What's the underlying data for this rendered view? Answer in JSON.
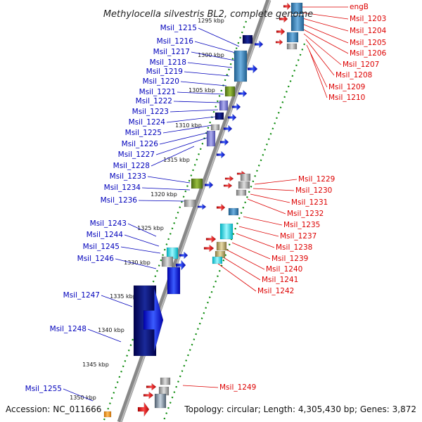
{
  "title": "Methylocella silvestris BL2, complete genome",
  "footer": {
    "accession": "Accession: NC_011666",
    "summary": "Topology: circular; Length: 4,305,430 bp; Genes: 3,872"
  },
  "colors": {
    "reverse_label": "#dd0000",
    "forward_label": "#0000bb",
    "backbone": "#888888",
    "tick_dots": "#0a8a0a"
  },
  "ticks": [
    "1295 kbp",
    "1300 kbp",
    "1305 kbp",
    "1310 kbp",
    "1315 kbp",
    "1320 kbp",
    "1325 kbp",
    "1330 kbp",
    "1335 kbp",
    "1340 kbp",
    "1345 kbp",
    "1350 kbp"
  ],
  "reverse_genes": [
    "engB",
    "Msil_1203",
    "Msil_1204",
    "Msil_1205",
    "Msil_1206",
    "Msil_1207",
    "Msil_1208",
    "Msil_1209",
    "Msil_1210",
    "Msil_1229",
    "Msil_1230",
    "Msil_1231",
    "Msil_1232",
    "Msil_1235",
    "Msil_1237",
    "Msil_1238",
    "Msil_1239",
    "Msil_1240",
    "Msil_1241",
    "Msil_1242",
    "Msil_1249"
  ],
  "forward_genes": [
    "Msil_1215",
    "Msil_1216",
    "Msil_1217",
    "Msil_1218",
    "Msil_1219",
    "Msil_1220",
    "Msil_1221",
    "Msil_1222",
    "Msil_1223",
    "Msil_1224",
    "Msil_1225",
    "Msil_1226",
    "Msil_1227",
    "Msil_1228",
    "Msil_1233",
    "Msil_1234",
    "Msil_1236",
    "Msil_1243",
    "Msil_1244",
    "Msil_1245",
    "Msil_1246",
    "Msil_1247",
    "Msil_1248",
    "Msil_1255"
  ]
}
